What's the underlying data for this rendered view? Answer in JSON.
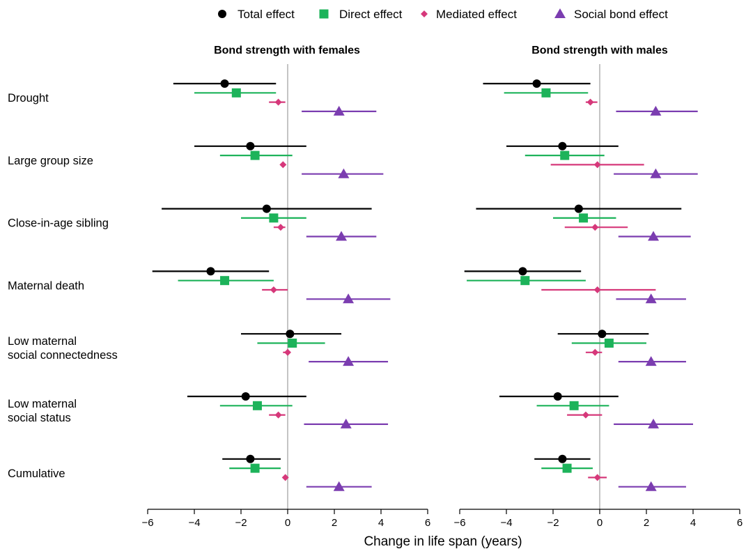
{
  "chart_data": {
    "type": "forest",
    "xlabel": "Change in life span (years)",
    "xlim": [
      -6,
      6
    ],
    "xticks": [
      -6,
      -4,
      -2,
      0,
      2,
      4,
      6
    ],
    "xtick_labels": [
      "−6",
      "−4",
      "−2",
      "0",
      "2",
      "4",
      "6"
    ],
    "reference_line": 0,
    "legend_position": "top",
    "effects": [
      {
        "key": "total",
        "name": "Total effect",
        "color": "#000000",
        "marker": "circle"
      },
      {
        "key": "direct",
        "name": "Direct effect",
        "color": "#1db35a",
        "marker": "square"
      },
      {
        "key": "mediated",
        "name": "Mediated effect",
        "color": "#d6387a",
        "marker": "diamond"
      },
      {
        "key": "social",
        "name": "Social bond effect",
        "color": "#7b3db0",
        "marker": "triangle"
      }
    ],
    "rows": [
      {
        "label": [
          "Drought"
        ]
      },
      {
        "label": [
          "Large group size"
        ]
      },
      {
        "label": [
          "Close-in-age sibling"
        ]
      },
      {
        "label": [
          "Maternal death"
        ]
      },
      {
        "label": [
          "Low maternal",
          "social connectedness"
        ]
      },
      {
        "label": [
          "Low maternal",
          "social status"
        ]
      },
      {
        "label": [
          "Cumulative"
        ]
      }
    ],
    "panels": [
      {
        "title": "Bond strength with females",
        "data": [
          {
            "total": [
              -2.7,
              -4.9,
              -0.5
            ],
            "direct": [
              -2.2,
              -4.0,
              -0.5
            ],
            "mediated": [
              -0.4,
              -0.8,
              -0.1
            ],
            "social": [
              2.2,
              0.6,
              3.8
            ]
          },
          {
            "total": [
              -1.6,
              -4.0,
              0.8
            ],
            "direct": [
              -1.4,
              -2.9,
              0.2
            ],
            "mediated": [
              -0.2,
              -0.3,
              -0.1
            ],
            "social": [
              2.4,
              0.6,
              4.1
            ]
          },
          {
            "total": [
              -0.9,
              -5.4,
              3.6
            ],
            "direct": [
              -0.6,
              -2.0,
              0.8
            ],
            "mediated": [
              -0.3,
              -0.6,
              -0.1
            ],
            "social": [
              2.3,
              0.8,
              3.8
            ]
          },
          {
            "total": [
              -3.3,
              -5.8,
              -0.8
            ],
            "direct": [
              -2.7,
              -4.7,
              -0.6
            ],
            "mediated": [
              -0.6,
              -1.1,
              0.0
            ],
            "social": [
              2.6,
              0.8,
              4.4
            ]
          },
          {
            "total": [
              0.1,
              -2.0,
              2.3
            ],
            "direct": [
              0.2,
              -1.3,
              1.6
            ],
            "mediated": [
              0.0,
              -0.2,
              0.1
            ],
            "social": [
              2.6,
              0.9,
              4.3
            ]
          },
          {
            "total": [
              -1.8,
              -4.3,
              0.8
            ],
            "direct": [
              -1.3,
              -2.9,
              0.2
            ],
            "mediated": [
              -0.4,
              -0.8,
              -0.1
            ],
            "social": [
              2.5,
              0.7,
              4.3
            ]
          },
          {
            "total": [
              -1.6,
              -2.8,
              -0.3
            ],
            "direct": [
              -1.4,
              -2.5,
              -0.3
            ],
            "mediated": [
              -0.1,
              -0.2,
              0.0
            ],
            "social": [
              2.2,
              0.8,
              3.6
            ]
          }
        ]
      },
      {
        "title": "Bond strength with males",
        "data": [
          {
            "total": [
              -2.7,
              -5.0,
              -0.4
            ],
            "direct": [
              -2.3,
              -4.1,
              -0.5
            ],
            "mediated": [
              -0.4,
              -0.6,
              -0.1
            ],
            "social": [
              2.4,
              0.7,
              4.2
            ]
          },
          {
            "total": [
              -1.6,
              -4.0,
              0.8
            ],
            "direct": [
              -1.5,
              -3.2,
              0.2
            ],
            "mediated": [
              -0.1,
              -2.1,
              1.9
            ],
            "social": [
              2.4,
              0.6,
              4.2
            ]
          },
          {
            "total": [
              -0.9,
              -5.3,
              3.5
            ],
            "direct": [
              -0.7,
              -2.0,
              0.7
            ],
            "mediated": [
              -0.2,
              -1.5,
              1.2
            ],
            "social": [
              2.3,
              0.8,
              3.9
            ]
          },
          {
            "total": [
              -3.3,
              -5.8,
              -0.8
            ],
            "direct": [
              -3.2,
              -5.7,
              -0.6
            ],
            "mediated": [
              -0.1,
              -2.5,
              2.4
            ],
            "social": [
              2.2,
              0.7,
              3.7
            ]
          },
          {
            "total": [
              0.1,
              -1.8,
              2.1
            ],
            "direct": [
              0.4,
              -1.2,
              2.0
            ],
            "mediated": [
              -0.2,
              -0.6,
              0.1
            ],
            "social": [
              2.2,
              0.8,
              3.7
            ]
          },
          {
            "total": [
              -1.8,
              -4.3,
              0.8
            ],
            "direct": [
              -1.1,
              -2.7,
              0.4
            ],
            "mediated": [
              -0.6,
              -1.4,
              0.1
            ],
            "social": [
              2.3,
              0.6,
              4.0
            ]
          },
          {
            "total": [
              -1.6,
              -2.8,
              -0.4
            ],
            "direct": [
              -1.4,
              -2.5,
              -0.3
            ],
            "mediated": [
              -0.1,
              -0.5,
              0.3
            ],
            "social": [
              2.2,
              0.8,
              3.7
            ]
          }
        ]
      }
    ]
  }
}
